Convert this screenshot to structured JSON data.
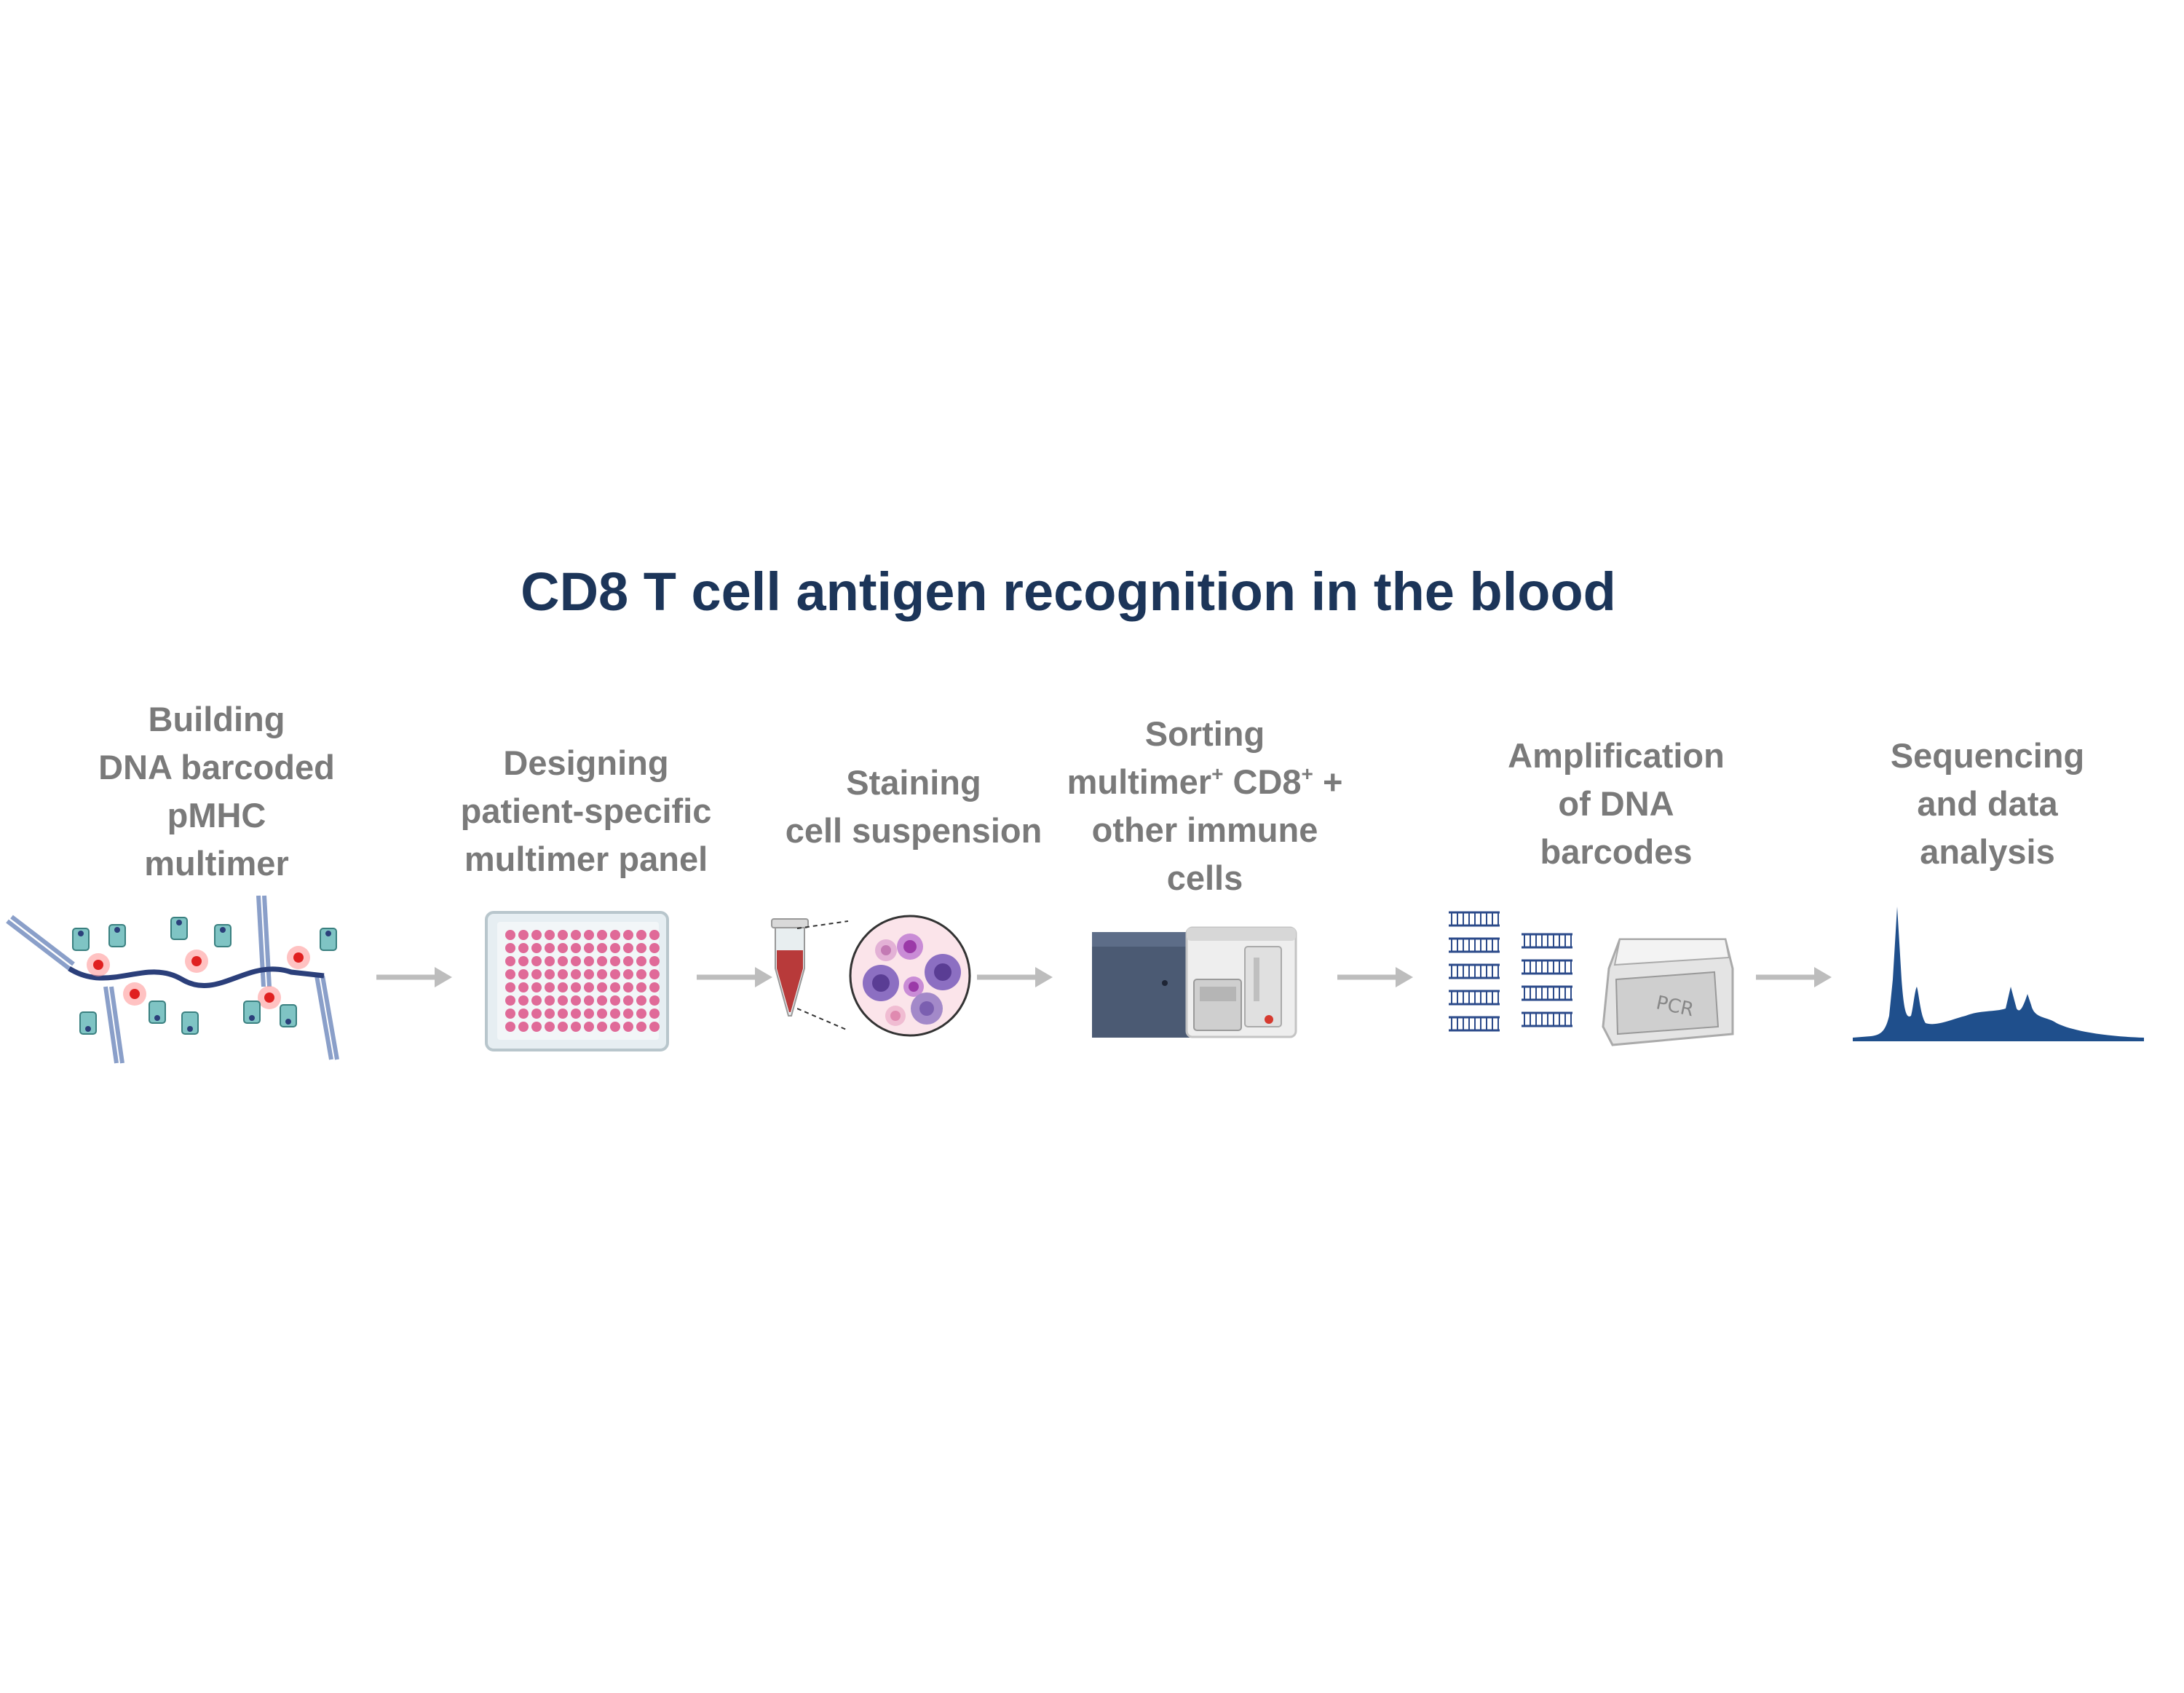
{
  "title": "CD8 T cell antigen recognition in the blood",
  "steps": [
    {
      "lines": [
        "Building",
        "DNA barcoded",
        "pMHC",
        "multimer"
      ]
    },
    {
      "lines": [
        "Designing",
        "patient-specific",
        "multimer panel"
      ]
    },
    {
      "lines": [
        "Staining",
        "cell suspension"
      ]
    },
    {
      "line1": "Sorting",
      "line2a": "multimer",
      "sup1": "+",
      "line2b": " CD8",
      "sup2": "+",
      "line2c": " +",
      "line3": "other immune",
      "line4": "cells"
    },
    {
      "lines": [
        "Amplification",
        "of DNA",
        "barcodes"
      ]
    },
    {
      "lines": [
        "Sequencing",
        "and data",
        "analysis"
      ]
    }
  ],
  "pcr_label": "PCR",
  "colors": {
    "title": "#1c3559",
    "label": "#7a7a7a",
    "arrow": "#bdbdbd",
    "dna": "#2b3f7a",
    "teal": "#7fc4c4",
    "plate_well": "#e06a98",
    "peak": "#1f4f8c"
  },
  "icons": [
    "dna-multimer-icon",
    "well-plate-icon",
    "tube-icon",
    "cell-suspension-icon",
    "flow-sorter-icon",
    "barcode-strands-icon",
    "pcr-machine-icon",
    "sequencing-peaks-icon",
    "arrow-right-icon"
  ]
}
